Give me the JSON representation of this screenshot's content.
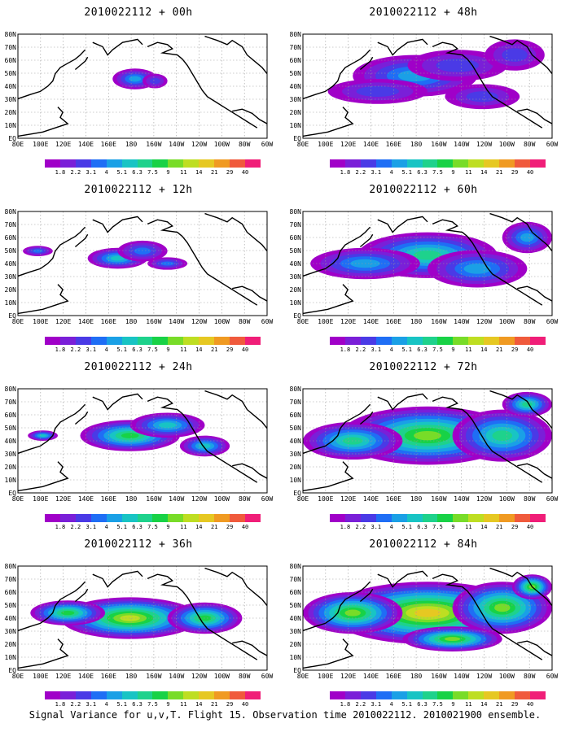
{
  "figure": {
    "caption": "Signal Variance for u,v,T. Flight 15. Observation time 2010022112. 2010021900 ensemble."
  },
  "colorbar": {
    "levels": [
      "1.8",
      "2.2",
      "3.1",
      "4",
      "5.1",
      "6.3",
      "7.5",
      "9",
      "11",
      "14",
      "21",
      "29",
      "40"
    ],
    "colors": [
      "#a000c8",
      "#7a1fd8",
      "#4a3ae6",
      "#1f6ef5",
      "#1aa0e6",
      "#18c4c4",
      "#1ed28c",
      "#18d246",
      "#78dc28",
      "#bede22",
      "#e6c822",
      "#f09a22",
      "#f05a3c",
      "#f01e78"
    ]
  },
  "lat_labels": [
    "80N",
    "70N",
    "60N",
    "50N",
    "40N",
    "30N",
    "20N",
    "10N",
    "EQ"
  ],
  "lon_labels": [
    "80E",
    "100E",
    "120E",
    "140E",
    "160E",
    "180",
    "160W",
    "140W",
    "120W",
    "100W",
    "80W",
    "60W"
  ],
  "panels": [
    {
      "title": "2010022112 + 00h",
      "coverage": 0.05
    },
    {
      "title": "2010022112 + 48h",
      "coverage": 0.45
    },
    {
      "title": "2010022112 + 12h",
      "coverage": 0.15
    },
    {
      "title": "2010022112 + 60h",
      "coverage": 0.55
    },
    {
      "title": "2010022112 + 24h",
      "coverage": 0.25
    },
    {
      "title": "2010022112 + 72h",
      "coverage": 0.7
    },
    {
      "title": "2010022112 + 36h",
      "coverage": 0.35
    },
    {
      "title": "2010022112 + 84h",
      "coverage": 0.8
    }
  ]
}
